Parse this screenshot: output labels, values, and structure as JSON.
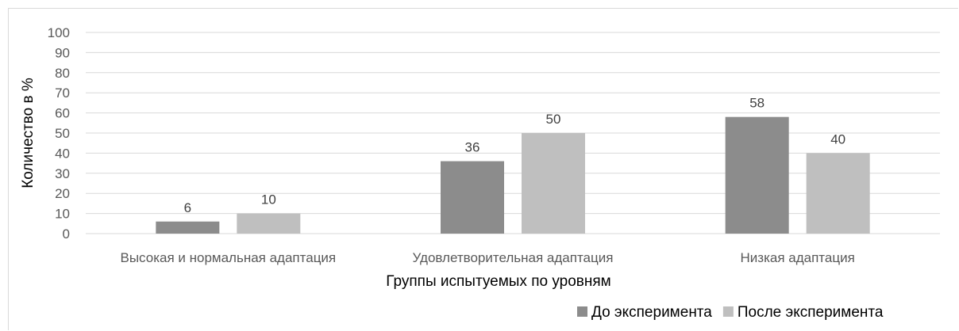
{
  "chart_data": {
    "type": "bar",
    "title": "",
    "xlabel": "Группы испытуемых по уровням",
    "ylabel": "Количество в %",
    "ylim": [
      0,
      100
    ],
    "yticks": [
      0,
      10,
      20,
      30,
      40,
      50,
      60,
      70,
      80,
      90,
      100
    ],
    "categories": [
      "Высокая и нормальная адаптация",
      "Удовлетворительная адаптация",
      "Низкая адаптация"
    ],
    "series": [
      {
        "name": "До эксперимента",
        "values": [
          6,
          36,
          58
        ],
        "color": "#8c8c8c"
      },
      {
        "name": "После эксперимента",
        "values": [
          10,
          50,
          40
        ],
        "color": "#bfbfbf"
      }
    ],
    "grid": true,
    "legend": "bottom-right",
    "data_labels": true
  }
}
